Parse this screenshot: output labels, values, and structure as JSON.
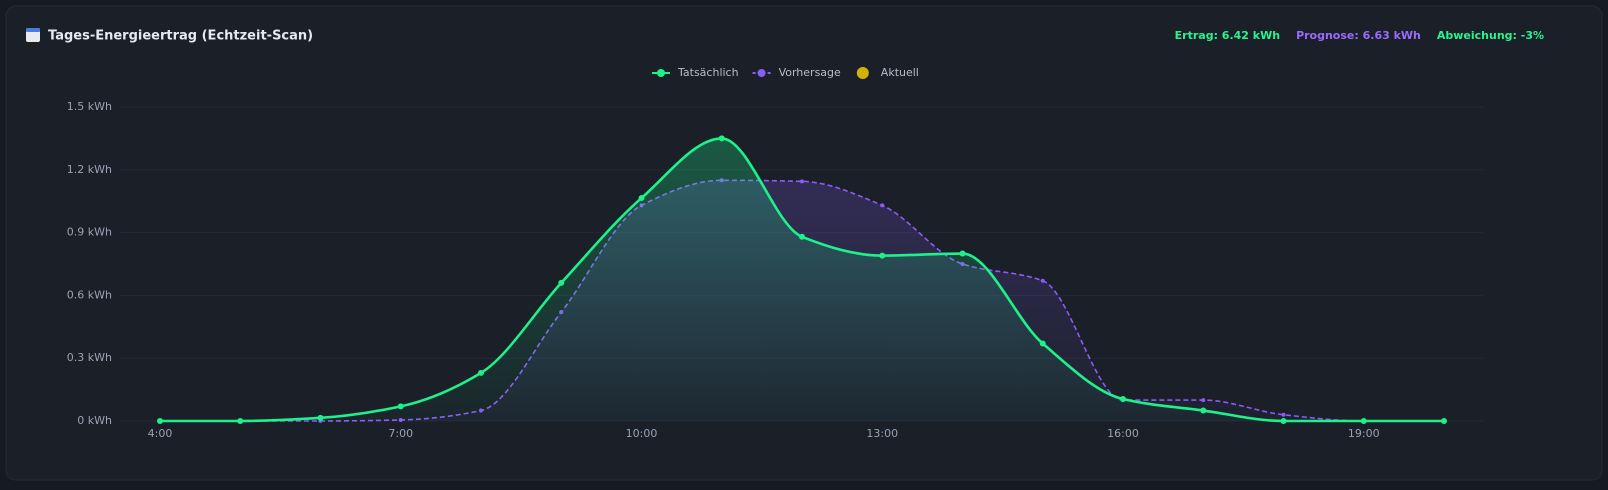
{
  "header": {
    "title": "Tages-Energieertrag (Echtzeit-Scan)",
    "stats": [
      {
        "text": "Ertrag: 6.42 kWh",
        "color": "#2cf28e"
      },
      {
        "text": "Prognose: 6.63 kWh",
        "color": "#9b6bff"
      },
      {
        "text": "Abweichung: -3%",
        "color": "#2cf28e"
      }
    ]
  },
  "chart_data": {
    "type": "line",
    "categories": [
      "4:00",
      null,
      null,
      "7:00",
      null,
      null,
      "10:00",
      null,
      null,
      "13:00",
      null,
      null,
      "16:00",
      null,
      null,
      "19:00",
      null
    ],
    "series": [
      {
        "name": "Tatsächlich",
        "color": "#1ef08a",
        "style": "solid",
        "values": [
          0,
          0,
          0.015,
          0.07,
          0.23,
          0.66,
          1.065,
          1.35,
          0.88,
          0.79,
          0.8,
          0.37,
          0.105,
          0.05,
          0,
          0,
          0
        ]
      },
      {
        "name": "Vorhersage",
        "color": "#8b5cf6",
        "style": "dashed",
        "values": [
          0,
          0,
          0,
          0.005,
          0.05,
          0.52,
          1.03,
          1.15,
          1.145,
          1.03,
          0.75,
          0.67,
          0.1,
          0.1,
          0.03,
          0,
          0
        ]
      },
      {
        "name": "Aktuell",
        "color": "#d4b106",
        "style": "marker",
        "values": [
          null,
          null,
          null,
          null,
          null,
          null,
          null,
          null,
          null,
          null,
          null,
          null,
          null,
          null,
          null,
          null,
          null
        ]
      }
    ],
    "ylim": [
      0,
      1.5
    ],
    "yticks": [
      {
        "value": 0,
        "label": "0 kWh"
      },
      {
        "value": 0.3,
        "label": "0.3 kWh"
      },
      {
        "value": 0.6,
        "label": "0.6 kWh"
      },
      {
        "value": 0.9,
        "label": "0.9 kWh"
      },
      {
        "value": 1.2,
        "label": "1.2 kWh"
      },
      {
        "value": 1.5,
        "label": "1.5 kWh"
      }
    ],
    "grid": true
  }
}
